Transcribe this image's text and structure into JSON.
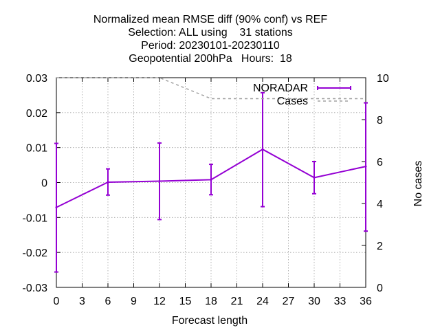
{
  "chart_data": {
    "type": "line",
    "title_lines": [
      "Normalized mean RMSE diff (90% conf) vs REF",
      "Selection: ALL using    31 stations",
      "Period: 20230101-20230110",
      "Geopotential 200hPa   Hours:  18"
    ],
    "xlabel": "Forecast length",
    "ylabel": "",
    "y2label": "No cases",
    "xlim": [
      0,
      36
    ],
    "ylim": [
      -0.03,
      0.03
    ],
    "y2lim": [
      0,
      10
    ],
    "x_ticks": [
      0,
      3,
      6,
      9,
      12,
      15,
      18,
      21,
      24,
      27,
      30,
      33,
      36
    ],
    "y_ticks": [
      -0.03,
      -0.02,
      -0.01,
      0,
      0.01,
      0.02,
      0.03
    ],
    "y_tick_labels": [
      "-0.03",
      "-0.02",
      "-0.01",
      "0",
      "0.01",
      "0.02",
      "0.03"
    ],
    "y2_ticks": [
      0,
      2,
      4,
      6,
      8,
      10
    ],
    "grid": true,
    "legend_position": "top-right",
    "series": [
      {
        "name": "NORADAR",
        "color": "#9400d3",
        "axis": "y",
        "x": [
          0,
          6,
          12,
          18,
          24,
          30,
          36
        ],
        "y": [
          -0.0071,
          0.0001,
          0.0004,
          0.0008,
          0.0095,
          0.0014,
          0.0046
        ],
        "err_low": [
          -0.0256,
          -0.0036,
          -0.0106,
          -0.0035,
          -0.0069,
          -0.0032,
          -0.0139
        ],
        "err_high": [
          0.0112,
          0.0039,
          0.0113,
          0.0052,
          0.0257,
          0.006,
          0.0228
        ]
      },
      {
        "name": "Cases",
        "color": "#a0a0a0",
        "axis": "y2",
        "style": "dashed",
        "x": [
          0,
          12,
          18,
          36
        ],
        "y": [
          10,
          10,
          9,
          9
        ]
      }
    ]
  }
}
